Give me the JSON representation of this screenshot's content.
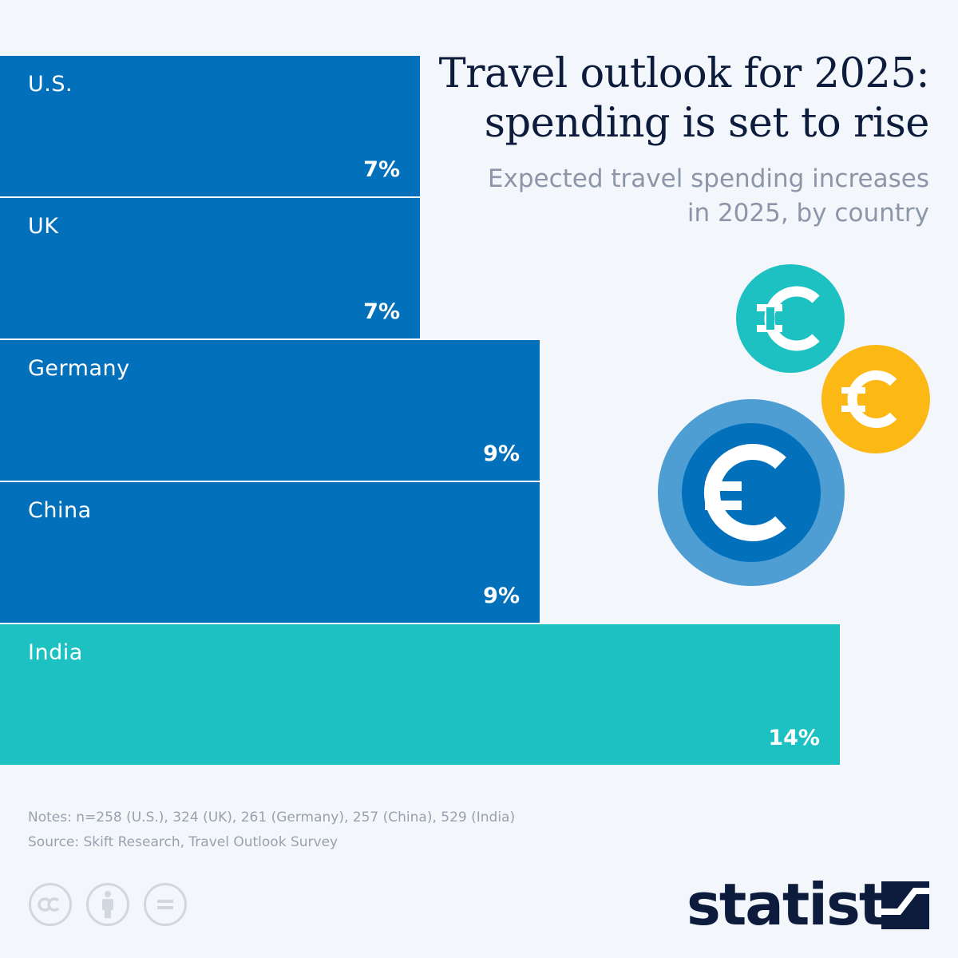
{
  "header": {
    "title": "Travel outlook for 2025: spending is set to rise",
    "subtitle": "Expected travel spending increases in 2025, by country"
  },
  "chart_data": {
    "type": "bar",
    "orientation": "horizontal",
    "title": "Travel outlook for 2025: spending is set to rise",
    "subtitle": "Expected travel spending increases in 2025, by country",
    "categories": [
      "U.S.",
      "UK",
      "Germany",
      "China",
      "India"
    ],
    "values": [
      7,
      7,
      9,
      9,
      14
    ],
    "value_labels": [
      "7%",
      "7%",
      "9%",
      "9%",
      "14%"
    ],
    "unit": "%",
    "xlim": [
      0,
      16
    ],
    "colors": [
      "#0270bb",
      "#0270bb",
      "#0270bb",
      "#0270bb",
      "#1dc1c1"
    ],
    "grid": false,
    "legend": "none"
  },
  "decoration": {
    "icons": [
      "euro-coin-teal-icon",
      "euro-coin-yellow-icon",
      "euro-coin-blue-icon"
    ],
    "colors": {
      "teal": "#1dc1c1",
      "yellow": "#fcb814",
      "blue": "#0270bb",
      "light_blue": "#4e9dd3"
    }
  },
  "footer": {
    "notes": "Notes: n=258 (U.S.), 324 (UK), 261 (Germany), 257 (China), 529 (India)",
    "source": "Source: Skift Research, Travel Outlook Survey",
    "license_icons": [
      "cc-icon",
      "attribution-icon",
      "no-derivatives-icon"
    ],
    "logo": "statista"
  }
}
